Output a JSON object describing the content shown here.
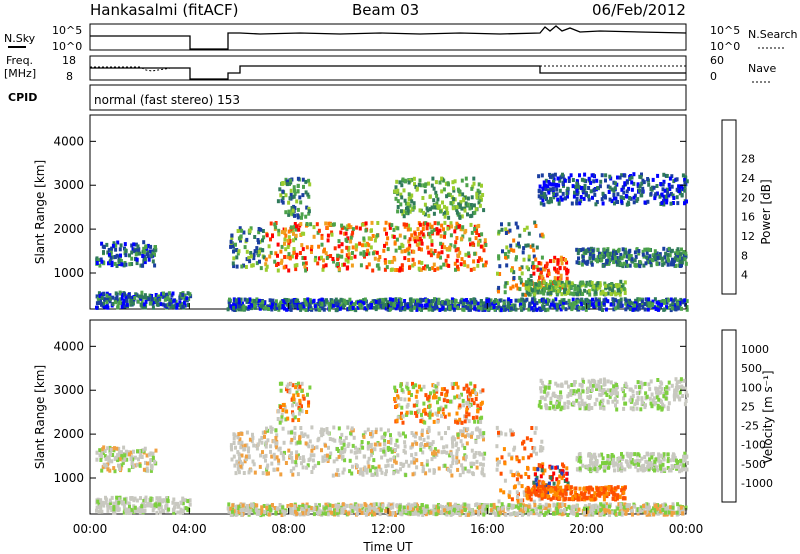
{
  "header": {
    "station": "Hankasalmi (fitACF)",
    "beam": "Beam 03",
    "date": "06/Feb/2012"
  },
  "panel_labels": {
    "nsky": "N.Sky",
    "nsearch": "N.Search",
    "freq": "Freq.",
    "freq_unit": "[MHz]",
    "nave": "Nave",
    "cpid": "CPID",
    "cpid_text": "normal (fast stereo) 153",
    "nsky_left_ticks": [
      "10^5",
      "10^0"
    ],
    "nsky_right_ticks": [
      "10^5",
      "10^0"
    ],
    "freq_left_ticks": [
      "18",
      "8"
    ],
    "freq_right_ticks": [
      "60",
      "0"
    ]
  },
  "chart_data": [
    {
      "type": "heatmap",
      "panel": "power",
      "ylabel": "Slant Range [km]",
      "xlabel": "",
      "yticks": [
        "1000",
        "2000",
        "3000",
        "4000"
      ],
      "ylim": [
        180,
        4600
      ],
      "colorbar": {
        "label": "Power [dB]",
        "ticks": [
          "4",
          "8",
          "12",
          "16",
          "20",
          "24",
          "28"
        ],
        "colors": [
          "#0000ff",
          "#1a3ea0",
          "#2f7a5a",
          "#4ca24a",
          "#9bcd2f",
          "#f0a020",
          "#ff7a00",
          "#ff3000",
          "#ff0000"
        ]
      }
    },
    {
      "type": "heatmap",
      "panel": "velocity",
      "ylabel": "Slant Range [km]",
      "xlabel": "Time UT",
      "yticks": [
        "1000",
        "2000",
        "3000",
        "4000"
      ],
      "ylim": [
        180,
        4600
      ],
      "xticks": [
        "00:00",
        "04:00",
        "08:00",
        "12:00",
        "16:00",
        "20:00",
        "00:00"
      ],
      "colorbar": {
        "label": "Velocity [m s⁻¹]",
        "ticks": [
          "1000",
          "500",
          "100",
          "25",
          "-25",
          "-100",
          "-500",
          "-1000"
        ],
        "colors": [
          "#1f3fbf",
          "#2f7a5a",
          "#4caf50",
          "#7ccf3f",
          "#c8c8c0",
          "#f0a040",
          "#ff8c00",
          "#ff5000",
          "#ff0000"
        ]
      }
    }
  ]
}
